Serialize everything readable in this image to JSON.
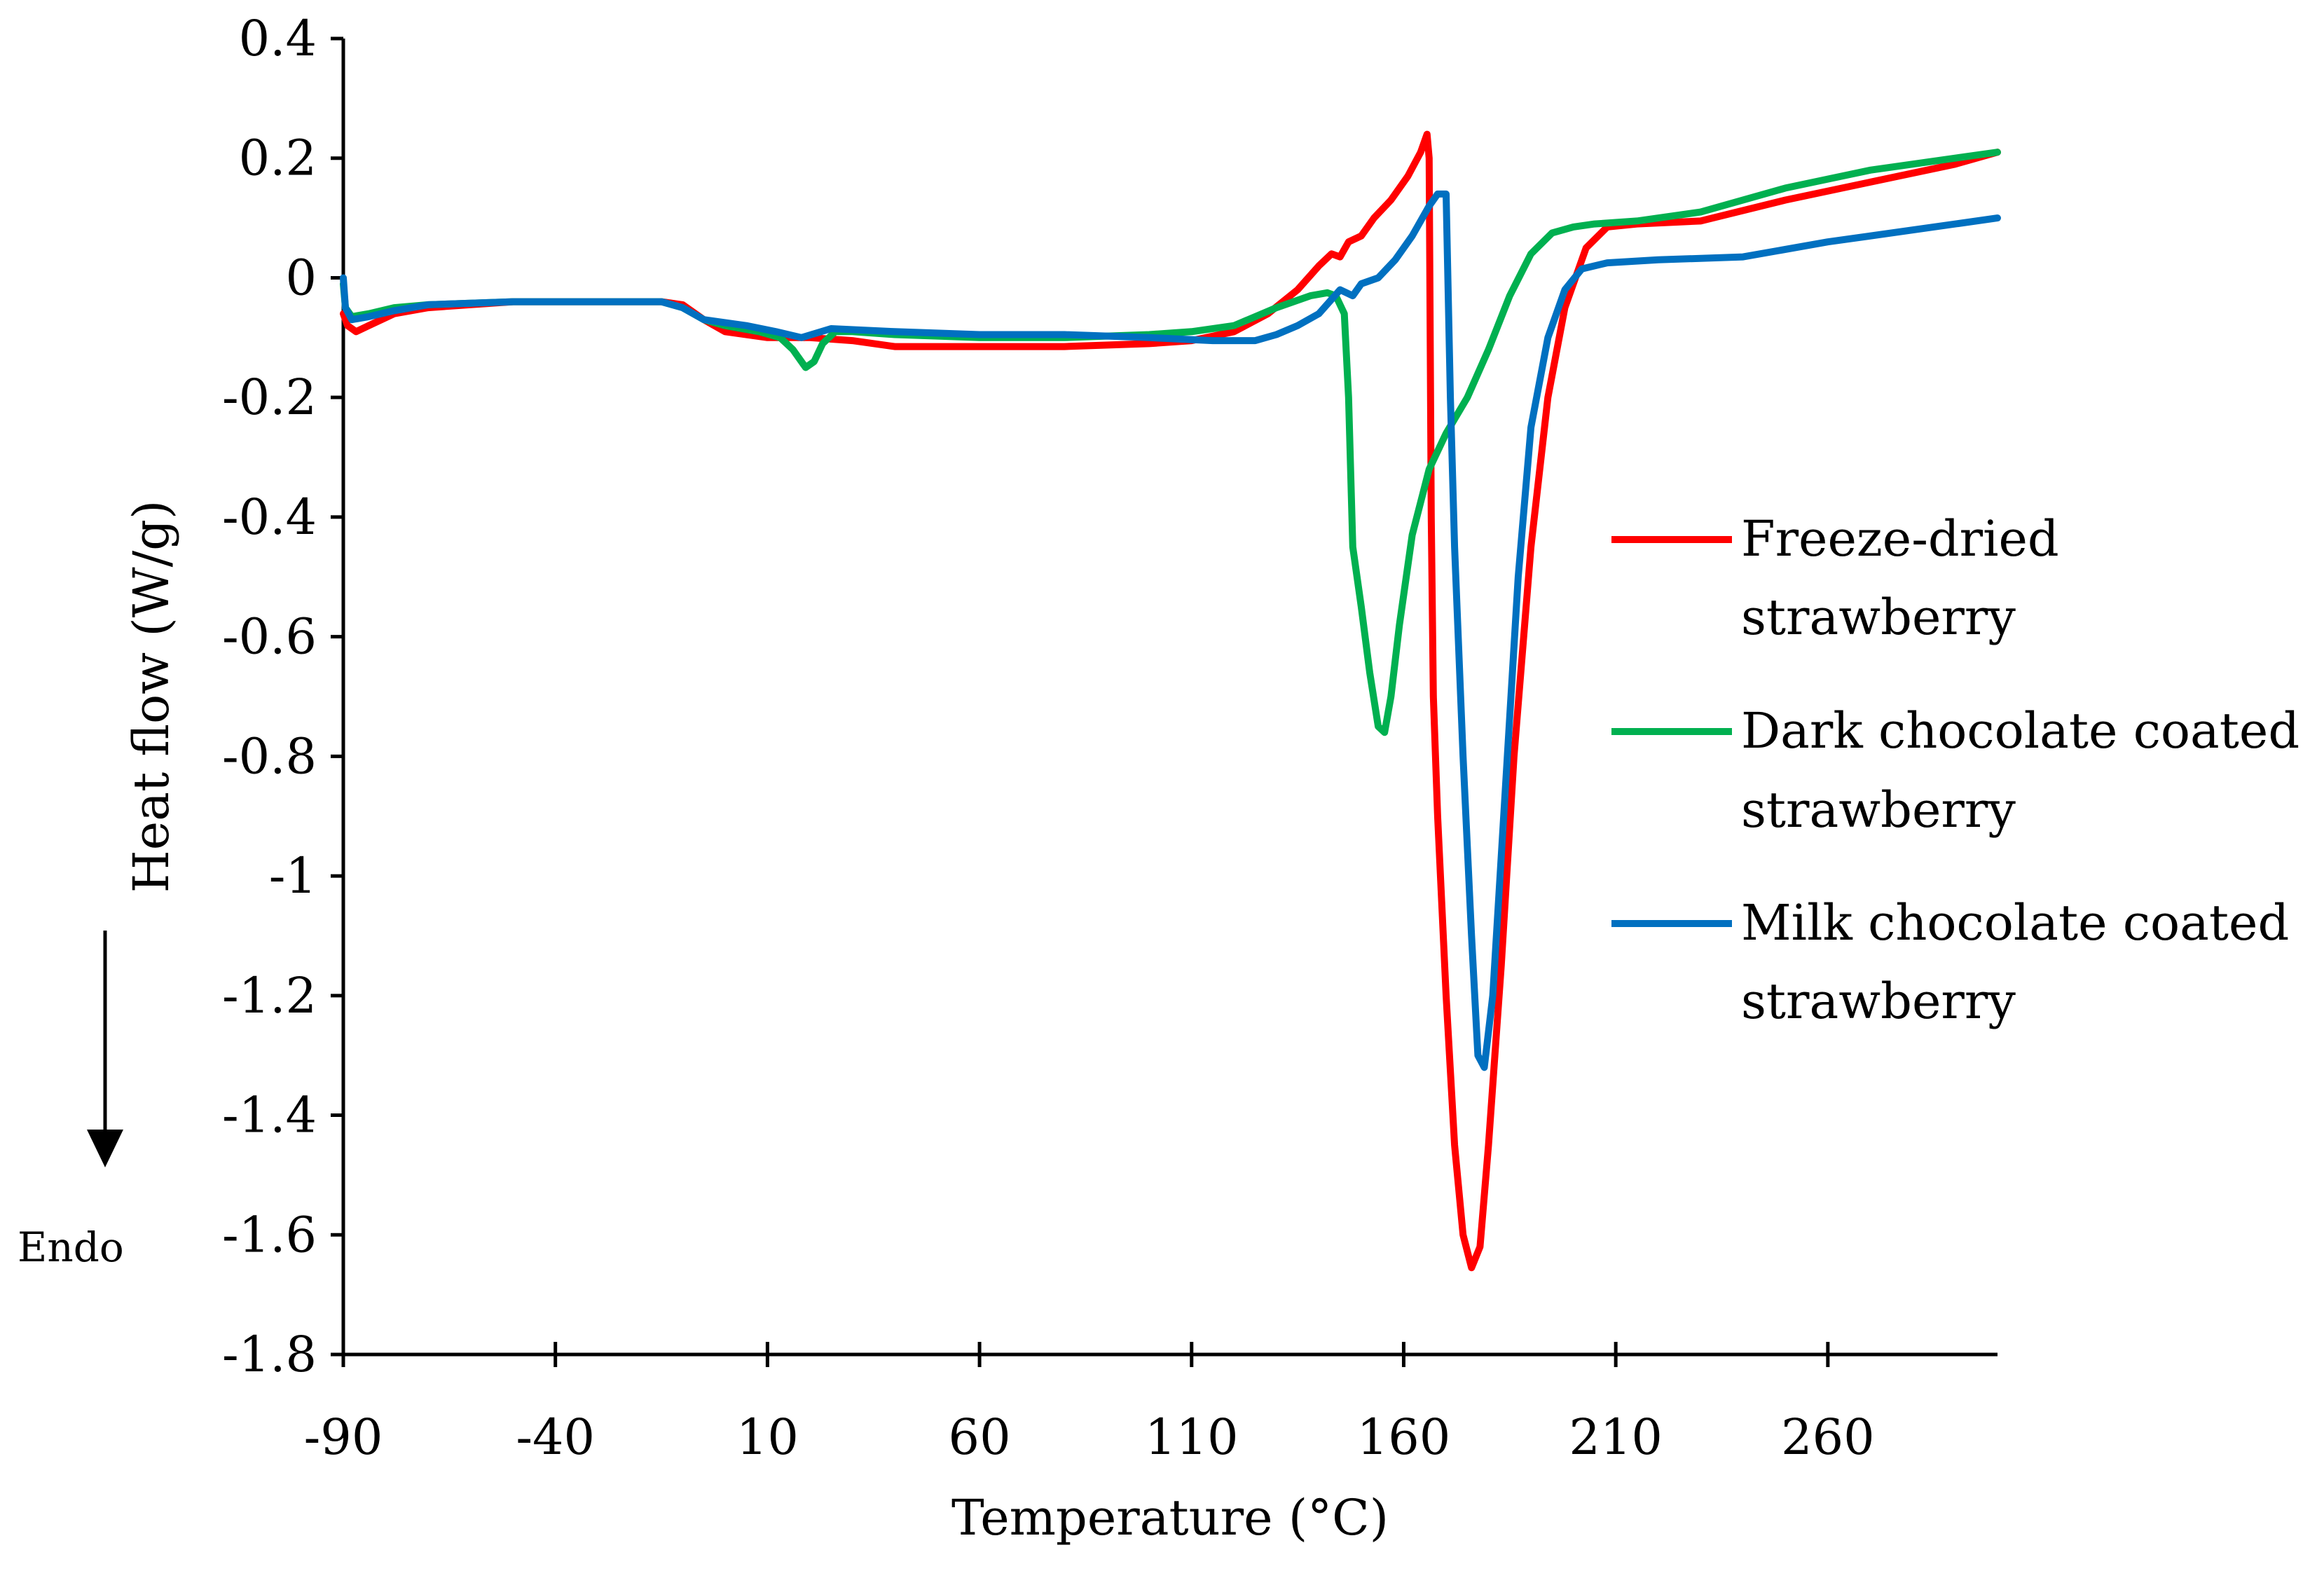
{
  "colors": {
    "freeze_dried": "#ff0000",
    "dark_chocolate": "#00b050",
    "milk_chocolate": "#0070c0",
    "axis": "#000000"
  },
  "chart_data": {
    "type": "line",
    "title": "",
    "xlabel": "Temperature (°C)",
    "ylabel": "Heat flow (W/g)",
    "xlim": [
      -90,
      300
    ],
    "ylim": [
      -1.8,
      0.4
    ],
    "x_ticks": [
      -90,
      -40,
      10,
      60,
      110,
      160,
      210,
      260
    ],
    "x_tick_labels": [
      "-90",
      "-40",
      "10",
      "60",
      "110",
      "160",
      "210",
      "260"
    ],
    "y_ticks": [
      0.4,
      0.2,
      0,
      -0.2,
      -0.4,
      -0.6,
      -0.8,
      -1,
      -1.2,
      -1.4,
      -1.6,
      -1.8
    ],
    "y_tick_labels": [
      "0.4",
      "0.2",
      "0",
      "-0.2",
      "-0.4",
      "-0.6",
      "-0.8",
      "-1",
      "-1.2",
      "-1.4",
      "-1.6",
      "-1.8"
    ],
    "annotation": "Endo",
    "legend_position": "right",
    "series": [
      {
        "name": "Freeze-dried strawberry",
        "legend_lines": [
          "Freeze-dried",
          "strawberry"
        ],
        "color_key": "freeze_dried",
        "points": [
          [
            -90,
            -0.06
          ],
          [
            -89,
            -0.08
          ],
          [
            -87,
            -0.09
          ],
          [
            -84,
            -0.08
          ],
          [
            -78,
            -0.06
          ],
          [
            -70,
            -0.05
          ],
          [
            -50,
            -0.04
          ],
          [
            -30,
            -0.04
          ],
          [
            -15,
            -0.04
          ],
          [
            -10,
            -0.045
          ],
          [
            -5,
            -0.07
          ],
          [
            0,
            -0.09
          ],
          [
            10,
            -0.1
          ],
          [
            20,
            -0.1
          ],
          [
            30,
            -0.105
          ],
          [
            40,
            -0.115
          ],
          [
            60,
            -0.115
          ],
          [
            80,
            -0.115
          ],
          [
            100,
            -0.11
          ],
          [
            110,
            -0.105
          ],
          [
            120,
            -0.09
          ],
          [
            128,
            -0.06
          ],
          [
            135,
            -0.02
          ],
          [
            140,
            0.02
          ],
          [
            143,
            0.04
          ],
          [
            145,
            0.035
          ],
          [
            147,
            0.06
          ],
          [
            150,
            0.07
          ],
          [
            153,
            0.1
          ],
          [
            157,
            0.13
          ],
          [
            161,
            0.17
          ],
          [
            164,
            0.21
          ],
          [
            165.5,
            0.24
          ],
          [
            166,
            0.2
          ],
          [
            166.5,
            -0.4
          ],
          [
            167,
            -0.7
          ],
          [
            168,
            -0.9
          ],
          [
            170,
            -1.2
          ],
          [
            172,
            -1.45
          ],
          [
            174,
            -1.6
          ],
          [
            176,
            -1.655
          ],
          [
            178,
            -1.62
          ],
          [
            180,
            -1.45
          ],
          [
            183,
            -1.15
          ],
          [
            186,
            -0.8
          ],
          [
            190,
            -0.45
          ],
          [
            194,
            -0.2
          ],
          [
            198,
            -0.05
          ],
          [
            203,
            0.05
          ],
          [
            208,
            0.085
          ],
          [
            215,
            0.09
          ],
          [
            230,
            0.095
          ],
          [
            250,
            0.13
          ],
          [
            270,
            0.16
          ],
          [
            290,
            0.19
          ],
          [
            300,
            0.21
          ]
        ]
      },
      {
        "name": "Dark chocolate coated strawberry",
        "legend_lines": [
          "Dark chocolate coated",
          "strawberry"
        ],
        "color_key": "dark_chocolate",
        "points": [
          [
            -90,
            -0.01
          ],
          [
            -89.5,
            -0.05
          ],
          [
            -88,
            -0.065
          ],
          [
            -84,
            -0.06
          ],
          [
            -78,
            -0.05
          ],
          [
            -70,
            -0.045
          ],
          [
            -50,
            -0.04
          ],
          [
            -30,
            -0.04
          ],
          [
            -15,
            -0.04
          ],
          [
            -10,
            -0.05
          ],
          [
            -5,
            -0.07
          ],
          [
            0,
            -0.08
          ],
          [
            8,
            -0.09
          ],
          [
            13,
            -0.1
          ],
          [
            16,
            -0.12
          ],
          [
            19,
            -0.15
          ],
          [
            21,
            -0.14
          ],
          [
            23,
            -0.11
          ],
          [
            26,
            -0.09
          ],
          [
            30,
            -0.09
          ],
          [
            40,
            -0.095
          ],
          [
            60,
            -0.1
          ],
          [
            80,
            -0.1
          ],
          [
            100,
            -0.095
          ],
          [
            110,
            -0.09
          ],
          [
            120,
            -0.08
          ],
          [
            130,
            -0.05
          ],
          [
            138,
            -0.03
          ],
          [
            142,
            -0.025
          ],
          [
            144,
            -0.03
          ],
          [
            146,
            -0.06
          ],
          [
            147,
            -0.2
          ],
          [
            148,
            -0.45
          ],
          [
            150,
            -0.55
          ],
          [
            152,
            -0.66
          ],
          [
            154,
            -0.75
          ],
          [
            155.5,
            -0.76
          ],
          [
            157,
            -0.7
          ],
          [
            159,
            -0.58
          ],
          [
            162,
            -0.43
          ],
          [
            166,
            -0.32
          ],
          [
            170,
            -0.26
          ],
          [
            175,
            -0.2
          ],
          [
            180,
            -0.12
          ],
          [
            185,
            -0.03
          ],
          [
            190,
            0.04
          ],
          [
            195,
            0.075
          ],
          [
            200,
            0.085
          ],
          [
            205,
            0.09
          ],
          [
            215,
            0.095
          ],
          [
            230,
            0.11
          ],
          [
            250,
            0.15
          ],
          [
            270,
            0.18
          ],
          [
            290,
            0.2
          ],
          [
            300,
            0.21
          ]
        ]
      },
      {
        "name": "Milk chocolate coated strawberry",
        "legend_lines": [
          "Milk chocolate coated",
          "strawberry"
        ],
        "color_key": "milk_chocolate",
        "points": [
          [
            -90,
            0.0
          ],
          [
            -89.5,
            -0.05
          ],
          [
            -88,
            -0.07
          ],
          [
            -84,
            -0.065
          ],
          [
            -78,
            -0.055
          ],
          [
            -70,
            -0.045
          ],
          [
            -50,
            -0.04
          ],
          [
            -30,
            -0.04
          ],
          [
            -15,
            -0.04
          ],
          [
            -10,
            -0.05
          ],
          [
            -5,
            -0.07
          ],
          [
            5,
            -0.08
          ],
          [
            12,
            -0.09
          ],
          [
            18,
            -0.1
          ],
          [
            25,
            -0.085
          ],
          [
            40,
            -0.09
          ],
          [
            60,
            -0.095
          ],
          [
            80,
            -0.095
          ],
          [
            100,
            -0.1
          ],
          [
            115,
            -0.105
          ],
          [
            125,
            -0.105
          ],
          [
            130,
            -0.095
          ],
          [
            135,
            -0.08
          ],
          [
            140,
            -0.06
          ],
          [
            145,
            -0.02
          ],
          [
            148,
            -0.03
          ],
          [
            150,
            -0.01
          ],
          [
            154,
            0.0
          ],
          [
            158,
            0.03
          ],
          [
            162,
            0.07
          ],
          [
            166,
            0.12
          ],
          [
            168,
            0.14
          ],
          [
            170,
            0.14
          ],
          [
            171,
            -0.2
          ],
          [
            172,
            -0.45
          ],
          [
            174,
            -0.8
          ],
          [
            176,
            -1.1
          ],
          [
            177.5,
            -1.3
          ],
          [
            179,
            -1.32
          ],
          [
            181,
            -1.2
          ],
          [
            184,
            -0.85
          ],
          [
            187,
            -0.5
          ],
          [
            190,
            -0.25
          ],
          [
            194,
            -0.1
          ],
          [
            198,
            -0.02
          ],
          [
            202,
            0.015
          ],
          [
            208,
            0.025
          ],
          [
            220,
            0.03
          ],
          [
            240,
            0.035
          ],
          [
            260,
            0.06
          ],
          [
            280,
            0.08
          ],
          [
            300,
            0.1
          ]
        ]
      }
    ]
  }
}
